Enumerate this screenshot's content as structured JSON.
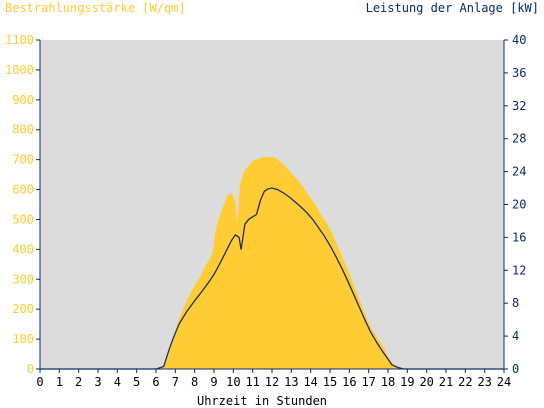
{
  "chart_data": {
    "type": "area",
    "left_axis_title": "Bestrahlungsstärke [W/qm]",
    "right_axis_title": "Leistung der Anlage [kW]",
    "xlabel": "Uhrzeit in Stunden",
    "xlim": [
      0,
      24
    ],
    "ylim_left": [
      0,
      1100
    ],
    "ylim_right": [
      0,
      40
    ],
    "x_ticks": [
      "0",
      "1",
      "2",
      "3",
      "4",
      "5",
      "6",
      "7",
      "8",
      "9",
      "10",
      "11",
      "12",
      "13",
      "14",
      "15",
      "16",
      "17",
      "18",
      "19",
      "20",
      "21",
      "22",
      "23",
      "24"
    ],
    "y_left_ticks": [
      "0",
      "100",
      "200",
      "300",
      "400",
      "500",
      "600",
      "700",
      "800",
      "900",
      "1000",
      "1100"
    ],
    "y_right_ticks": [
      "0",
      "4",
      "8",
      "12",
      "16",
      "20",
      "24",
      "28",
      "32",
      "36",
      "40"
    ],
    "grid": false,
    "colors": {
      "irradiance": "#ffcc33",
      "power": "#1f2f6b",
      "plot_bg": "#dcdcdc",
      "left_axis_text": "#ffcc33",
      "right_axis_text": "#0b2a6a",
      "axis": "#0b2a6a"
    },
    "series": [
      {
        "axis": "left",
        "kind": "area",
        "x": [
          0,
          6.2,
          6.5,
          6.7,
          6.9,
          7.2,
          7.6,
          8.0,
          8.3,
          8.6,
          8.9,
          9.1,
          9.4,
          9.7,
          9.9,
          10.1,
          10.2,
          10.35,
          10.45,
          10.6,
          10.8,
          11.0,
          11.2,
          11.5,
          11.8,
          12.0,
          12.2,
          12.5,
          12.8,
          13.0,
          13.3,
          13.6,
          13.9,
          14.2,
          14.5,
          14.8,
          15.1,
          15.4,
          15.7,
          16.0,
          16.3,
          16.6,
          16.9,
          17.2,
          17.5,
          17.8,
          18.0,
          18.3,
          18.6,
          18.8,
          19.0,
          24
        ],
        "values": [
          0,
          0,
          20,
          60,
          110,
          170,
          230,
          280,
          310,
          350,
          380,
          470,
          530,
          580,
          590,
          560,
          490,
          620,
          640,
          665,
          680,
          695,
          700,
          708,
          708,
          710,
          705,
          690,
          670,
          655,
          635,
          610,
          580,
          555,
          520,
          490,
          455,
          410,
          365,
          320,
          270,
          220,
          170,
          130,
          100,
          70,
          40,
          15,
          5,
          0,
          0,
          0
        ]
      },
      {
        "axis": "right",
        "kind": "line",
        "x": [
          0,
          6.0,
          6.4,
          6.7,
          6.9,
          7.2,
          7.6,
          8.0,
          8.4,
          8.8,
          9.0,
          9.3,
          9.6,
          9.9,
          10.1,
          10.3,
          10.4,
          10.6,
          10.8,
          11.0,
          11.2,
          11.4,
          11.6,
          11.8,
          12.0,
          12.3,
          12.6,
          12.9,
          13.2,
          13.5,
          13.8,
          14.1,
          14.4,
          14.7,
          15.0,
          15.3,
          15.6,
          15.9,
          16.2,
          16.5,
          16.8,
          17.1,
          17.4,
          17.7,
          18.0,
          18.2,
          18.5,
          18.8,
          19.0,
          24
        ],
        "values": [
          0,
          0,
          0.3,
          2.5,
          3.8,
          5.5,
          7.0,
          8.3,
          9.5,
          10.8,
          11.5,
          12.8,
          14.2,
          15.6,
          16.3,
          16.0,
          14.5,
          17.6,
          18.2,
          18.5,
          18.8,
          20.5,
          21.6,
          21.9,
          22.0,
          21.8,
          21.4,
          20.9,
          20.3,
          19.7,
          19.0,
          18.2,
          17.2,
          16.2,
          15.0,
          13.7,
          12.3,
          10.8,
          9.2,
          7.6,
          6.0,
          4.5,
          3.3,
          2.2,
          1.2,
          0.5,
          0.2,
          0.0,
          0.0,
          0.0
        ]
      }
    ]
  }
}
